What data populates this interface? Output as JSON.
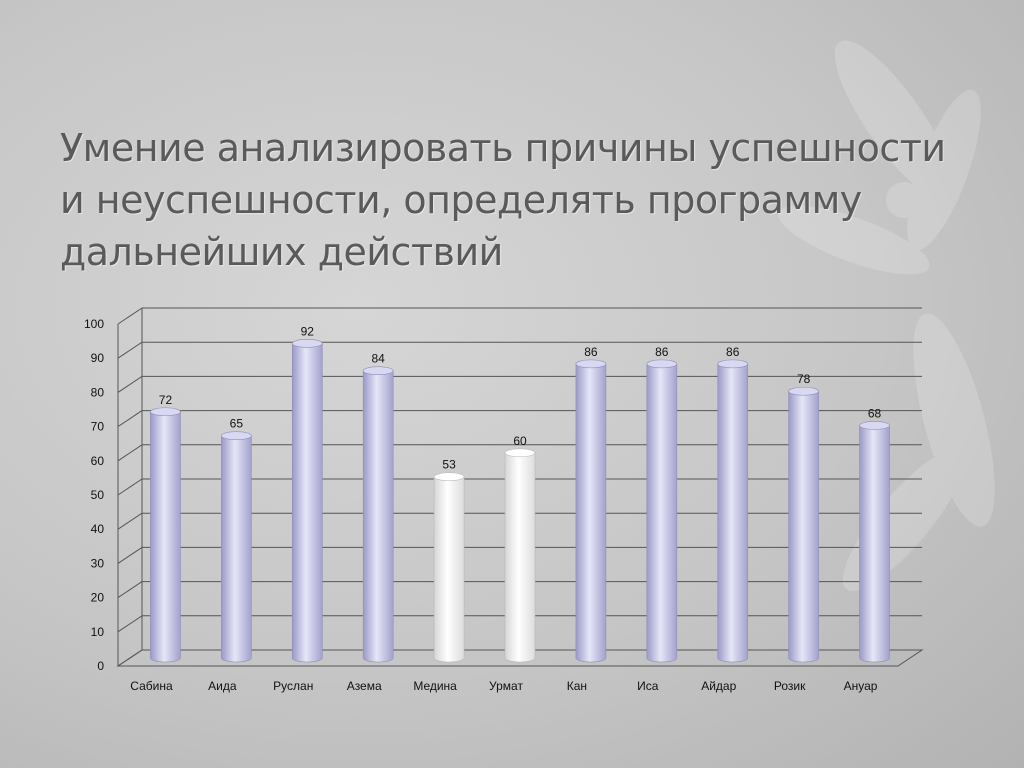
{
  "title": {
    "lines": [
      "Умение анализировать причины успешности",
      "и неуспешности, определять программу",
      "дальнейших действий"
    ]
  },
  "colors": {
    "bar_default": "#c8c8e6",
    "bar_highlight": "#f4f4f4",
    "grid": "#555555",
    "title": "#5a5a5a"
  },
  "chart_data": {
    "type": "bar",
    "categories": [
      "Сабина",
      "Аида",
      "Руслан",
      "Азема",
      "Медина",
      "Урмат",
      "Кан",
      "Иса",
      "Айдар",
      "Розик",
      "Ануар"
    ],
    "values": [
      72,
      65,
      92,
      84,
      53,
      60,
      86,
      86,
      86,
      78,
      68
    ],
    "highlighted": [
      "Медина",
      "Урмат"
    ],
    "yticks": [
      0,
      10,
      20,
      30,
      40,
      50,
      60,
      70,
      80,
      90,
      100
    ],
    "ylim": [
      0,
      100
    ],
    "grid": true,
    "data_labels": true
  }
}
